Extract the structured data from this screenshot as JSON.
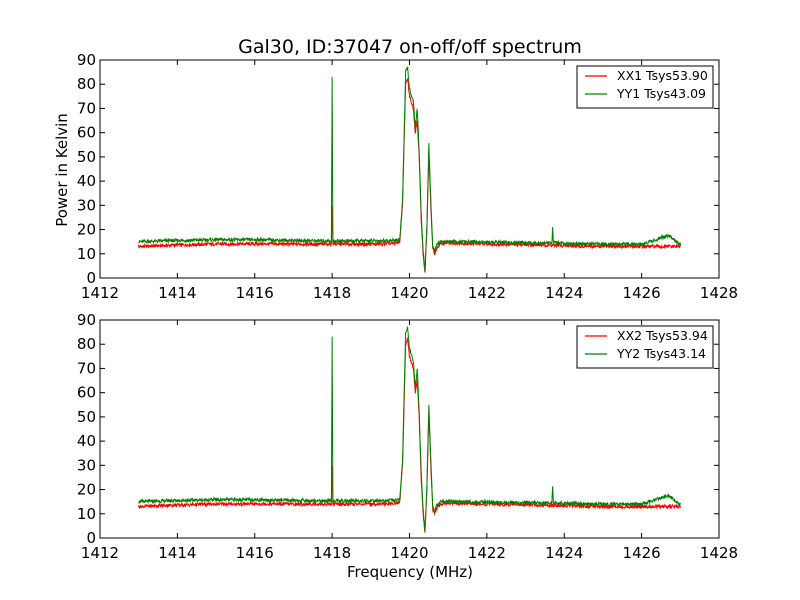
{
  "figure": {
    "title": "Gal30, ID:37047 on-off/off spectrum",
    "xlabel": "Frequency (MHz)",
    "ylabel": "Power in Kelvin"
  },
  "colors": {
    "xx": "#ff0000",
    "yy": "#008000"
  },
  "chart_data": [
    {
      "type": "line",
      "title": "Gal30, ID:37047 on-off/off spectrum",
      "xlabel": "",
      "ylabel": "Power in Kelvin",
      "xlim": [
        1412,
        1428
      ],
      "ylim": [
        0,
        90
      ],
      "xticks": [
        1412,
        1414,
        1416,
        1418,
        1420,
        1422,
        1424,
        1426,
        1428
      ],
      "yticks": [
        0,
        10,
        20,
        30,
        40,
        50,
        60,
        70,
        80,
        90
      ],
      "legend": "top-right",
      "grid": false,
      "series": [
        {
          "name": "XX1 Tsys53.90",
          "color": "#ff0000",
          "x": [
            1413.0,
            1414.0,
            1415.0,
            1416.0,
            1417.0,
            1417.98,
            1418.0,
            1418.02,
            1419.0,
            1419.6,
            1419.75,
            1419.82,
            1419.9,
            1419.95,
            1420.0,
            1420.1,
            1420.15,
            1420.2,
            1420.25,
            1420.3,
            1420.35,
            1420.4,
            1420.45,
            1420.5,
            1420.55,
            1420.6,
            1420.65,
            1420.7,
            1420.8,
            1421.0,
            1422.0,
            1423.0,
            1423.68,
            1423.7,
            1423.72,
            1424.0,
            1425.0,
            1426.0,
            1426.7,
            1427.0
          ],
          "y": [
            13.0,
            13.6,
            14.0,
            14.1,
            14.0,
            14.0,
            30.0,
            14.0,
            14.0,
            14.2,
            15.0,
            30.0,
            80.0,
            82.0,
            75.0,
            70.0,
            60.0,
            65.0,
            50.0,
            25.0,
            10.0,
            2.0,
            20.0,
            52.0,
            30.0,
            12.0,
            10.0,
            12.0,
            14.0,
            14.5,
            14.0,
            13.8,
            13.5,
            13.5,
            13.5,
            13.3,
            13.0,
            13.0,
            13.0,
            13.0
          ]
        },
        {
          "name": "YY1 Tsys43.09",
          "color": "#008000",
          "x": [
            1413.0,
            1414.0,
            1415.0,
            1416.0,
            1417.0,
            1417.98,
            1418.0,
            1418.02,
            1419.0,
            1419.6,
            1419.75,
            1419.82,
            1419.9,
            1419.95,
            1420.0,
            1420.1,
            1420.15,
            1420.2,
            1420.25,
            1420.3,
            1420.35,
            1420.4,
            1420.45,
            1420.5,
            1420.55,
            1420.6,
            1420.65,
            1420.7,
            1420.8,
            1421.0,
            1422.0,
            1423.0,
            1423.68,
            1423.7,
            1423.72,
            1424.0,
            1425.0,
            1426.0,
            1426.7,
            1427.0
          ],
          "y": [
            15.0,
            15.5,
            15.8,
            15.8,
            15.5,
            15.3,
            83.0,
            15.3,
            15.3,
            15.5,
            16.0,
            32.0,
            85.0,
            87.0,
            78.0,
            73.0,
            62.0,
            70.0,
            52.0,
            28.0,
            12.0,
            3.0,
            22.0,
            55.0,
            33.0,
            13.0,
            11.0,
            13.5,
            15.0,
            15.0,
            14.8,
            14.5,
            14.5,
            21.5,
            14.5,
            14.3,
            14.0,
            14.0,
            17.5,
            13.8
          ]
        }
      ]
    },
    {
      "type": "line",
      "title": "",
      "xlabel": "Frequency (MHz)",
      "ylabel": "",
      "xlim": [
        1412,
        1428
      ],
      "ylim": [
        0,
        90
      ],
      "xticks": [
        1412,
        1414,
        1416,
        1418,
        1420,
        1422,
        1424,
        1426,
        1428
      ],
      "yticks": [
        0,
        10,
        20,
        30,
        40,
        50,
        60,
        70,
        80,
        90
      ],
      "legend": "top-right",
      "grid": false,
      "series": [
        {
          "name": "XX2 Tsys53.94",
          "color": "#ff0000",
          "x": [
            1413.0,
            1414.0,
            1415.0,
            1416.0,
            1417.0,
            1417.98,
            1418.0,
            1418.02,
            1419.0,
            1419.6,
            1419.75,
            1419.82,
            1419.9,
            1419.95,
            1420.0,
            1420.1,
            1420.15,
            1420.2,
            1420.25,
            1420.3,
            1420.35,
            1420.4,
            1420.45,
            1420.5,
            1420.55,
            1420.6,
            1420.65,
            1420.7,
            1420.8,
            1421.0,
            1422.0,
            1423.0,
            1423.68,
            1423.7,
            1423.72,
            1424.0,
            1425.0,
            1426.0,
            1426.7,
            1427.0
          ],
          "y": [
            13.0,
            13.6,
            14.0,
            14.1,
            14.0,
            14.0,
            30.0,
            14.0,
            14.0,
            14.2,
            15.0,
            30.0,
            80.0,
            82.0,
            75.0,
            70.0,
            60.0,
            65.0,
            50.0,
            25.0,
            10.0,
            2.0,
            20.0,
            52.0,
            30.0,
            12.0,
            10.0,
            12.0,
            14.0,
            14.5,
            14.0,
            13.8,
            13.5,
            13.5,
            13.5,
            13.3,
            13.0,
            13.0,
            13.0,
            13.0
          ]
        },
        {
          "name": "YY2 Tsys43.14",
          "color": "#008000",
          "x": [
            1413.0,
            1414.0,
            1415.0,
            1416.0,
            1417.0,
            1417.98,
            1418.0,
            1418.02,
            1419.0,
            1419.6,
            1419.75,
            1419.82,
            1419.9,
            1419.95,
            1420.0,
            1420.1,
            1420.15,
            1420.2,
            1420.25,
            1420.3,
            1420.35,
            1420.4,
            1420.45,
            1420.5,
            1420.55,
            1420.6,
            1420.65,
            1420.7,
            1420.8,
            1421.0,
            1422.0,
            1423.0,
            1423.68,
            1423.7,
            1423.72,
            1424.0,
            1425.0,
            1426.0,
            1426.7,
            1427.0
          ],
          "y": [
            15.0,
            15.5,
            15.8,
            15.8,
            15.5,
            15.3,
            83.0,
            15.3,
            15.3,
            15.5,
            16.0,
            32.0,
            85.0,
            87.0,
            78.0,
            73.0,
            62.0,
            70.0,
            52.0,
            28.0,
            12.0,
            3.0,
            22.0,
            55.0,
            33.0,
            13.0,
            11.0,
            13.5,
            15.0,
            15.0,
            14.8,
            14.5,
            14.5,
            21.5,
            14.5,
            14.3,
            14.0,
            14.0,
            17.5,
            13.8
          ]
        }
      ]
    }
  ]
}
